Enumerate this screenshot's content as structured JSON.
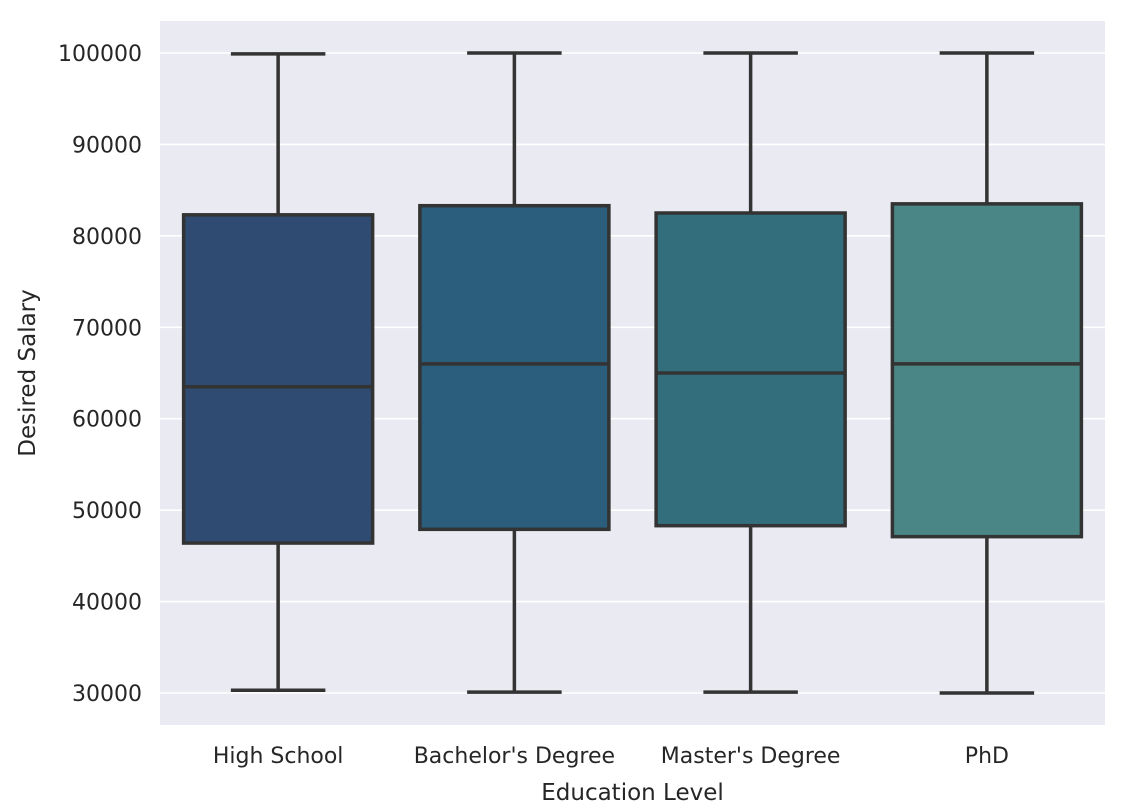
{
  "chart_data": {
    "type": "box",
    "title": "",
    "xlabel": "Education Level",
    "ylabel": "Desired Salary",
    "ylim": [
      26500,
      103500
    ],
    "yticks": [
      30000,
      40000,
      50000,
      60000,
      70000,
      80000,
      90000,
      100000
    ],
    "grid": true,
    "legend": "none",
    "categories": [
      "High School",
      "Bachelor's Degree",
      "Master's Degree",
      "PhD"
    ],
    "boxes": [
      {
        "category": "High School",
        "whisker_low": 30300,
        "q1": 46400,
        "median": 63500,
        "q3": 82300,
        "whisker_high": 99900,
        "color": "#2f4b72"
      },
      {
        "category": "Bachelor's Degree",
        "whisker_low": 30100,
        "q1": 47900,
        "median": 66000,
        "q3": 83300,
        "whisker_high": 100000,
        "color": "#2a5e7c"
      },
      {
        "category": "Master's Degree",
        "whisker_low": 30100,
        "q1": 48300,
        "median": 65000,
        "q3": 82500,
        "whisker_high": 100000,
        "color": "#326e7c"
      },
      {
        "category": "PhD",
        "whisker_low": 30000,
        "q1": 47100,
        "median": 66000,
        "q3": 83500,
        "whisker_high": 100000,
        "color": "#4a8685"
      }
    ],
    "colors": {
      "plot_background": "#eaeaf2",
      "grid": "#ffffff",
      "edge": "#333333"
    }
  }
}
